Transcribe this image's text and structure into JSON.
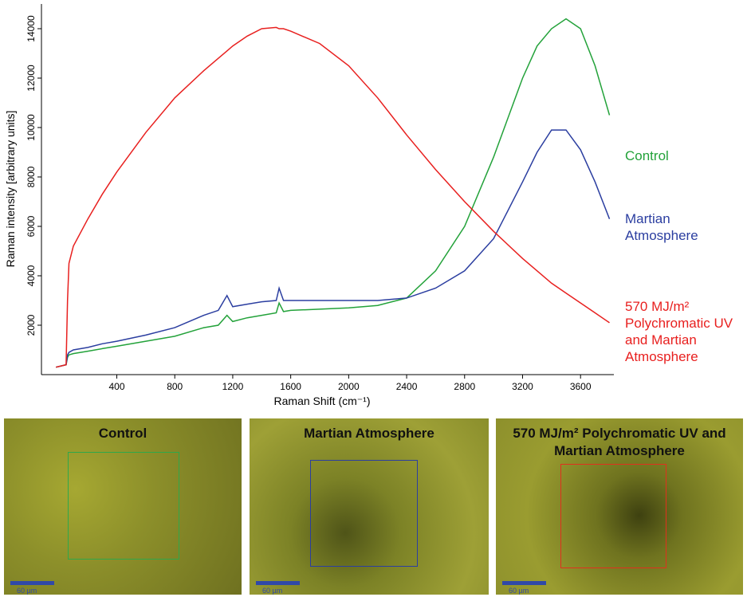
{
  "chart_data": {
    "type": "line",
    "x_label": "Raman Shift (cm⁻¹)",
    "y_label": "Raman intensity [arbitrary units]",
    "x": [
      -20,
      50,
      60,
      70,
      100,
      200,
      300,
      400,
      600,
      800,
      1000,
      1100,
      1160,
      1200,
      1300,
      1400,
      1500,
      1520,
      1550,
      1600,
      1800,
      2000,
      2200,
      2400,
      2600,
      2800,
      3000,
      3200,
      3300,
      3400,
      3500,
      3600,
      3700,
      3800
    ],
    "series": [
      {
        "name": "Control",
        "color": "#23a23a",
        "values": [
          300,
          400,
          700,
          800,
          850,
          950,
          1050,
          1150,
          1350,
          1550,
          1900,
          2000,
          2400,
          2150,
          2300,
          2400,
          2500,
          2900,
          2550,
          2600,
          2650,
          2700,
          2800,
          3100,
          4200,
          6000,
          8800,
          12000,
          13300,
          14000,
          14400,
          14000,
          12500,
          10500
        ]
      },
      {
        "name": "Martian Atmosphere",
        "color": "#2b3ea0",
        "values": [
          300,
          400,
          800,
          900,
          1000,
          1100,
          1250,
          1350,
          1600,
          1900,
          2400,
          2600,
          3200,
          2750,
          2850,
          2950,
          3000,
          3500,
          3000,
          3000,
          3000,
          3000,
          3000,
          3100,
          3500,
          4200,
          5500,
          7800,
          9000,
          9900,
          9900,
          9100,
          7800,
          6300
        ]
      },
      {
        "name": "570 MJ/m² Polychromatic UV and Martian Atmosphere",
        "color": "#e8201f",
        "values": [
          300,
          400,
          3000,
          4500,
          5200,
          6300,
          7300,
          8200,
          9800,
          11200,
          12300,
          12800,
          13100,
          13300,
          13700,
          14000,
          14050,
          14000,
          14000,
          13900,
          13400,
          12500,
          11200,
          9700,
          8300,
          7000,
          5800,
          4700,
          4200,
          3700,
          3300,
          2900,
          2500,
          2100
        ]
      }
    ],
    "xlim": [
      -120,
      3830
    ],
    "ylim": [
      0,
      15000
    ],
    "xticks": [
      400,
      800,
      1200,
      1600,
      2000,
      2400,
      2800,
      3200,
      3600
    ],
    "yticks": [
      2000,
      4000,
      6000,
      8000,
      10000,
      12000,
      14000
    ]
  },
  "panels": [
    {
      "title": "Control",
      "scale": "60 µm",
      "color": "#2fa84a"
    },
    {
      "title": "Martian Atmosphere",
      "scale": "60 µm",
      "color": "#2b3ea0"
    },
    {
      "title": "570 MJ/m² Polychromatic UV and Martian Atmosphere",
      "scale": "60 µm",
      "color": "#e0301e"
    }
  ]
}
